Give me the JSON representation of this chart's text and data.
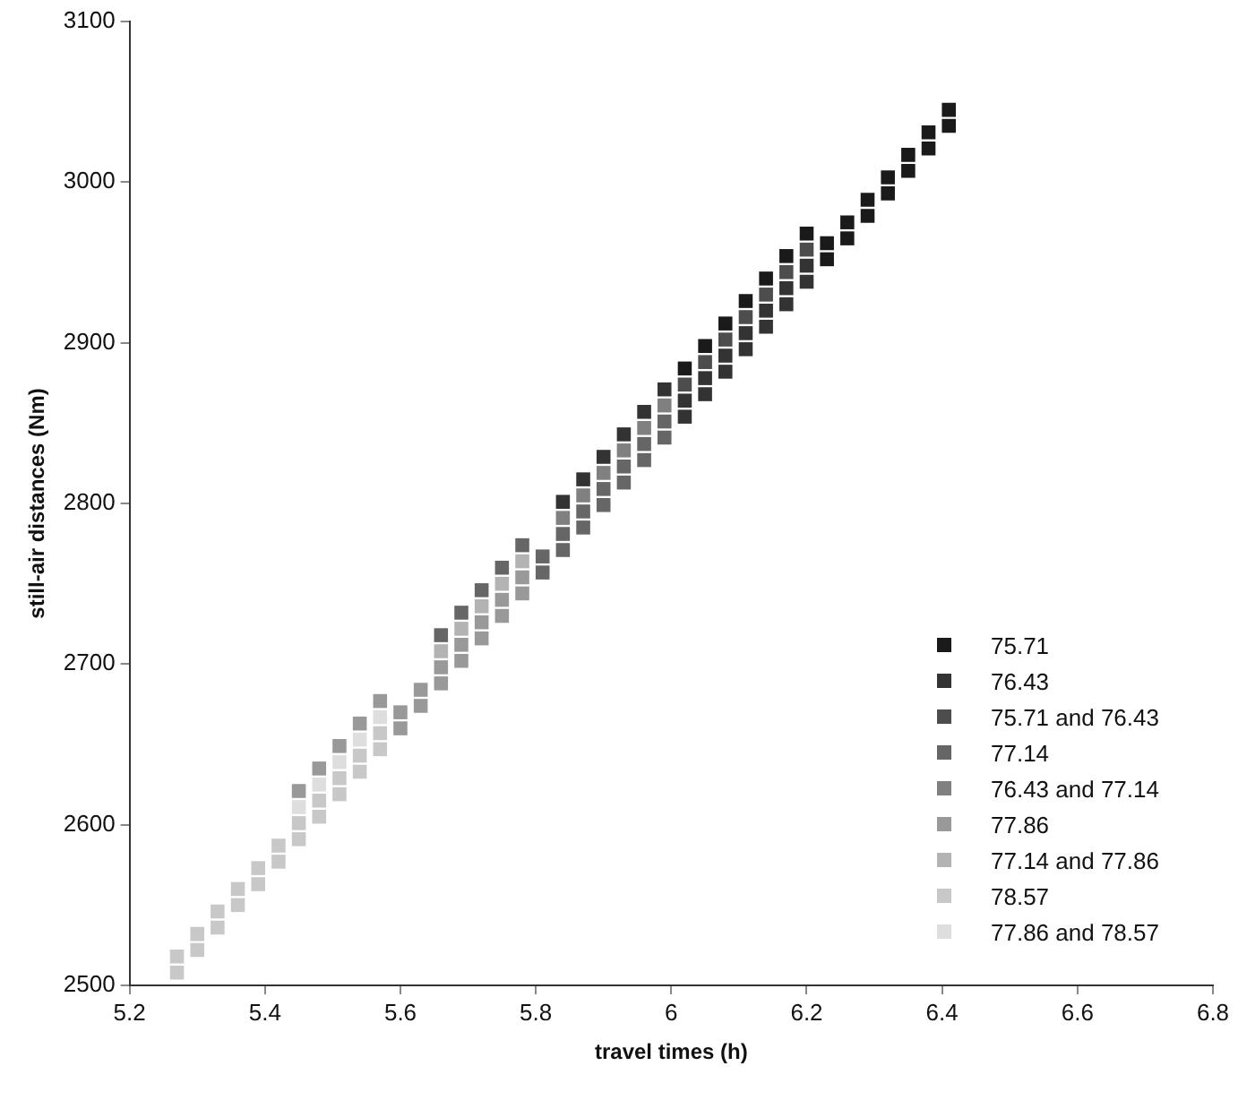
{
  "chart_data": {
    "type": "scatter",
    "xlabel": "travel times (h)",
    "ylabel": "still-air distances (Nm)",
    "xlim": [
      5.2,
      6.8
    ],
    "xticks": [
      5.2,
      5.4,
      5.6,
      5.8,
      6,
      6.2,
      6.4,
      6.6,
      6.8
    ],
    "ylim": [
      2500,
      3100
    ],
    "yticks": [
      2500,
      2600,
      2700,
      2800,
      2900,
      3000,
      3100
    ],
    "grid": false,
    "legend": "bottom right",
    "marker": "square",
    "series": [
      {
        "name": "75.71",
        "color": "#1a1a1a",
        "x": [
          6.02,
          6.05,
          6.08,
          6.11,
          6.14,
          6.17,
          6.2,
          6.23,
          6.23,
          6.26,
          6.26,
          6.29,
          6.29,
          6.32,
          6.32,
          6.35,
          6.35,
          6.38,
          6.38,
          6.41,
          6.41
        ],
        "values": [
          2884,
          2898,
          2912,
          2926,
          2940,
          2954,
          2968,
          2952,
          2962,
          2965,
          2975,
          2979,
          2989,
          2993,
          3003,
          3007,
          3017,
          3021,
          3031,
          3035,
          3045
        ]
      },
      {
        "name": "76.43",
        "color": "#333333",
        "x": [
          5.84,
          5.87,
          5.9,
          5.93,
          5.96,
          5.99,
          6.02,
          6.02,
          6.05,
          6.05,
          6.08,
          6.08,
          6.11,
          6.11,
          6.14,
          6.14,
          6.17,
          6.17,
          6.2,
          6.2
        ],
        "values": [
          2801,
          2815,
          2829,
          2843,
          2857,
          2871,
          2854,
          2864,
          2868,
          2878,
          2882,
          2892,
          2896,
          2906,
          2910,
          2920,
          2924,
          2934,
          2938,
          2948
        ]
      },
      {
        "name": "75.71 and 76.43",
        "color": "#4d4d4d",
        "x": [
          6.02,
          6.05,
          6.08,
          6.11,
          6.14,
          6.17,
          6.2
        ],
        "values": [
          2874,
          2888,
          2902,
          2916,
          2930,
          2944,
          2958
        ]
      },
      {
        "name": "77.14",
        "color": "#666666",
        "x": [
          5.66,
          5.69,
          5.72,
          5.75,
          5.78,
          5.81,
          5.81,
          5.84,
          5.84,
          5.87,
          5.87,
          5.9,
          5.9,
          5.93,
          5.93,
          5.96,
          5.96,
          5.99,
          5.99
        ],
        "values": [
          2718,
          2732,
          2746,
          2760,
          2774,
          2757,
          2767,
          2771,
          2781,
          2785,
          2795,
          2799,
          2809,
          2813,
          2823,
          2827,
          2837,
          2841,
          2851
        ]
      },
      {
        "name": "76.43 and 77.14",
        "color": "#808080",
        "x": [
          5.84,
          5.87,
          5.9,
          5.93,
          5.96,
          5.99
        ],
        "values": [
          2791,
          2805,
          2819,
          2833,
          2847,
          2861
        ]
      },
      {
        "name": "77.86",
        "color": "#999999",
        "x": [
          5.45,
          5.48,
          5.51,
          5.54,
          5.57,
          5.6,
          5.6,
          5.63,
          5.63,
          5.66,
          5.66,
          5.69,
          5.69,
          5.72,
          5.72,
          5.75,
          5.75,
          5.78,
          5.78
        ],
        "values": [
          2621,
          2635,
          2649,
          2663,
          2677,
          2660,
          2670,
          2674,
          2684,
          2688,
          2698,
          2702,
          2712,
          2716,
          2726,
          2730,
          2740,
          2744,
          2754
        ]
      },
      {
        "name": "77.14 and 77.86",
        "color": "#b3b3b3",
        "x": [
          5.66,
          5.69,
          5.72,
          5.75,
          5.78
        ],
        "values": [
          2708,
          2722,
          2736,
          2750,
          2764
        ]
      },
      {
        "name": "78.57",
        "color": "#c8c8c8",
        "x": [
          5.27,
          5.3,
          5.33,
          5.36,
          5.39,
          5.42,
          5.45,
          5.48,
          5.51,
          5.54,
          5.57,
          5.27,
          5.3,
          5.33,
          5.36,
          5.39,
          5.42,
          5.45,
          5.48,
          5.51,
          5.54,
          5.57
        ],
        "values": [
          2508,
          2522,
          2536,
          2550,
          2563,
          2577,
          2591,
          2605,
          2619,
          2633,
          2647,
          2518,
          2532,
          2546,
          2560,
          2573,
          2587,
          2601,
          2615,
          2629,
          2643,
          2657
        ]
      },
      {
        "name": "77.86 and 78.57",
        "color": "#dedede",
        "x": [
          5.45,
          5.48,
          5.51,
          5.54,
          5.57
        ],
        "values": [
          2611,
          2625,
          2639,
          2653,
          2667
        ]
      }
    ]
  }
}
